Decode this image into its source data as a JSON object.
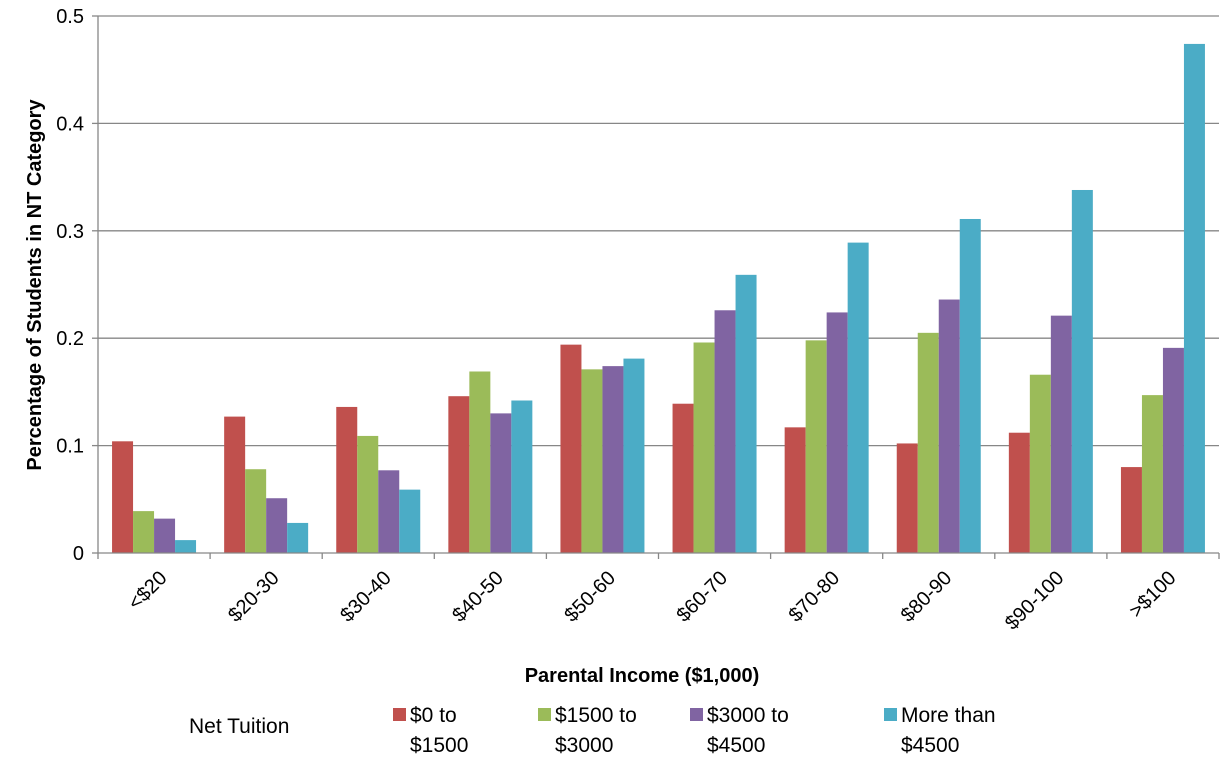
{
  "chart_data": {
    "type": "bar",
    "title": "",
    "xlabel": "Parental Income ($1,000)",
    "ylabel": "Percentage of Students in NT Category",
    "ylim": [
      0,
      0.5
    ],
    "yticks": [
      "0",
      "0.1",
      "0.2",
      "0.3",
      "0.4",
      "0.5"
    ],
    "ytick_values": [
      0,
      0.1,
      0.2,
      0.3,
      0.4,
      0.5
    ],
    "grid": true,
    "legend_title": "Net Tuition",
    "legend_position": "bottom",
    "categories": [
      "<$20",
      "$20-30",
      "$30-40",
      "$40-50",
      "$50-60",
      "$60-70",
      "$70-80",
      "$80-90",
      "$90-100",
      ">$100"
    ],
    "series": [
      {
        "name_lines": [
          "$0 to",
          "$1500"
        ],
        "color": "#C0504D",
        "values": [
          0.104,
          0.127,
          0.136,
          0.146,
          0.194,
          0.139,
          0.117,
          0.102,
          0.112,
          0.08
        ]
      },
      {
        "name_lines": [
          "$1500 to",
          "$3000"
        ],
        "color": "#9BBB59",
        "values": [
          0.039,
          0.078,
          0.109,
          0.169,
          0.171,
          0.196,
          0.198,
          0.205,
          0.166,
          0.147
        ]
      },
      {
        "name_lines": [
          "$3000 to",
          "$4500"
        ],
        "color": "#8064A2",
        "values": [
          0.032,
          0.051,
          0.077,
          0.13,
          0.174,
          0.226,
          0.224,
          0.236,
          0.221,
          0.191
        ]
      },
      {
        "name_lines": [
          "More than",
          "$4500"
        ],
        "color": "#4BACC6",
        "values": [
          0.012,
          0.028,
          0.059,
          0.142,
          0.181,
          0.259,
          0.289,
          0.311,
          0.338,
          0.474
        ]
      }
    ]
  }
}
